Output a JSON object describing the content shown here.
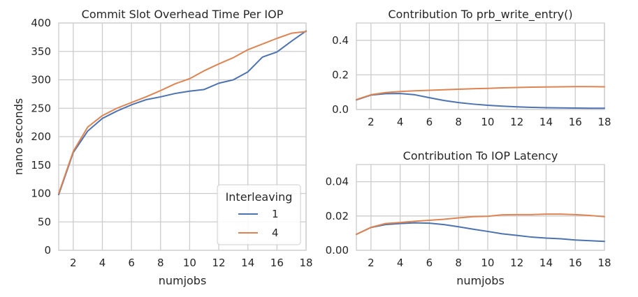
{
  "chart_data": [
    {
      "type": "line",
      "title": "Commit Slot Overhead Time Per IOP",
      "xlabel": "numjobs",
      "ylabel": "nano seconds",
      "xlim": [
        1,
        18
      ],
      "ylim": [
        0,
        400
      ],
      "xticks": [
        2,
        4,
        6,
        8,
        10,
        12,
        14,
        16,
        18
      ],
      "yticks": [
        0,
        50,
        100,
        150,
        200,
        250,
        300,
        350,
        400
      ],
      "grid": true,
      "legend": {
        "title": "Interleaving",
        "placement": "lower-right"
      },
      "x": [
        1,
        2,
        3,
        4,
        5,
        6,
        7,
        8,
        9,
        10,
        11,
        12,
        13,
        14,
        15,
        16,
        17,
        18
      ],
      "series": [
        {
          "name": "1",
          "color": "#4c72b0",
          "values": [
            98,
            172,
            210,
            232,
            245,
            256,
            265,
            270,
            276,
            280,
            283,
            294,
            300,
            314,
            340,
            349,
            368,
            386
          ]
        },
        {
          "name": "4",
          "color": "#dd8452",
          "values": [
            100,
            174,
            217,
            237,
            250,
            260,
            270,
            281,
            293,
            302,
            316,
            328,
            339,
            353,
            363,
            373,
            382,
            385
          ]
        }
      ]
    },
    {
      "type": "line",
      "title": "Contribution To prb_write_entry()",
      "xlabel": "",
      "ylabel": "",
      "xlim": [
        1,
        18
      ],
      "ylim": [
        0,
        0.5
      ],
      "xticks": [
        2,
        4,
        6,
        8,
        10,
        12,
        14,
        16,
        18
      ],
      "yticks": [
        "0.0",
        "0.2",
        "0.4"
      ],
      "grid": true,
      "x": [
        1,
        2,
        3,
        4,
        5,
        6,
        7,
        8,
        9,
        10,
        11,
        12,
        13,
        14,
        15,
        16,
        17,
        18
      ],
      "series": [
        {
          "color": "#4c72b0",
          "values": [
            0.055,
            0.083,
            0.091,
            0.092,
            0.085,
            0.068,
            0.052,
            0.04,
            0.031,
            0.024,
            0.019,
            0.015,
            0.012,
            0.01,
            0.009,
            0.008,
            0.007,
            0.007
          ]
        },
        {
          "color": "#dd8452",
          "values": [
            0.057,
            0.085,
            0.098,
            0.104,
            0.108,
            0.111,
            0.114,
            0.117,
            0.12,
            0.122,
            0.125,
            0.127,
            0.129,
            0.13,
            0.131,
            0.132,
            0.132,
            0.131
          ]
        }
      ]
    },
    {
      "type": "line",
      "title": "Contribution To IOP Latency",
      "xlabel": "numjobs",
      "ylabel": "",
      "xlim": [
        1,
        18
      ],
      "ylim": [
        0,
        0.05
      ],
      "xticks": [
        2,
        4,
        6,
        8,
        10,
        12,
        14,
        16,
        18
      ],
      "yticks": [
        "0.00",
        "0.02",
        "0.04"
      ],
      "grid": true,
      "x": [
        1,
        2,
        3,
        4,
        5,
        6,
        7,
        8,
        9,
        10,
        11,
        12,
        13,
        14,
        15,
        16,
        17,
        18
      ],
      "series": [
        {
          "color": "#4c72b0",
          "values": [
            0.0093,
            0.0133,
            0.015,
            0.0156,
            0.016,
            0.0158,
            0.015,
            0.0137,
            0.0123,
            0.011,
            0.0096,
            0.0087,
            0.0077,
            0.0071,
            0.0067,
            0.006,
            0.0056,
            0.0052
          ]
        },
        {
          "color": "#dd8452",
          "values": [
            0.0093,
            0.0134,
            0.0156,
            0.0162,
            0.0169,
            0.0175,
            0.0181,
            0.0189,
            0.0196,
            0.0198,
            0.0207,
            0.0208,
            0.0208,
            0.0211,
            0.0211,
            0.0208,
            0.0203,
            0.0196
          ]
        }
      ]
    }
  ]
}
